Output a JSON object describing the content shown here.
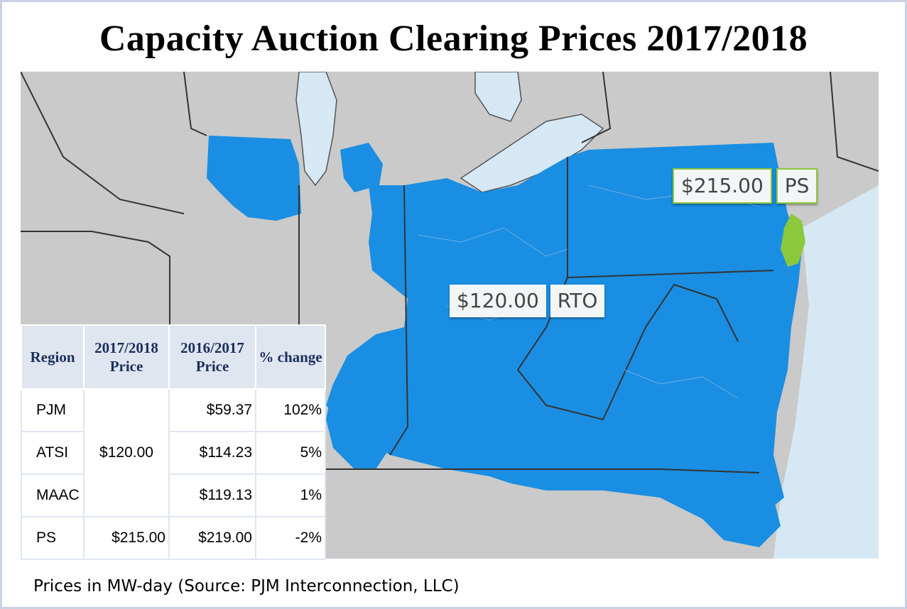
{
  "title": "Capacity Auction Clearing Prices 2017/2018",
  "map": {
    "colors": {
      "pjm_region": "#1a8ee2",
      "ps_zone": "#8cc83c",
      "land": "#c9cac9",
      "water": "#d6e8f3",
      "border": "#333333"
    },
    "callouts": {
      "rto": {
        "price": "$120.00",
        "label": "RTO"
      },
      "ps": {
        "price": "$215.00",
        "label": "PS"
      }
    }
  },
  "table": {
    "headers": {
      "region": "Region",
      "price_2017": "2017/2018 Price",
      "price_2016": "2016/2017 Price",
      "change": "% change"
    },
    "rows": [
      {
        "region": "PJM",
        "price_2016": "$59.37",
        "change": "102%"
      },
      {
        "region": "ATSI",
        "price_2016": "$114.23",
        "change": "5%"
      },
      {
        "region": "MAAC",
        "price_2016": "$119.13",
        "change": "1%"
      },
      {
        "region": "PS",
        "price_2016": "$219.00",
        "change": "-2%"
      }
    ],
    "merged_price_2017": "$120.00",
    "ps_price_2017": "$215.00"
  },
  "footnote": "Prices in MW-day (Source: PJM Interconnection, LLC)"
}
